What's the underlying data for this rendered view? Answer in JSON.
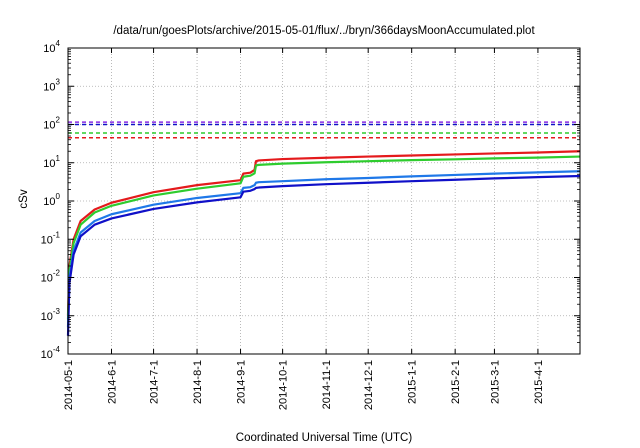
{
  "colors": {
    "red": "#e41a1c",
    "green": "#2ecc2e",
    "light_blue": "#1f78e8",
    "dark_blue": "#1010c8",
    "purple": "#8a2be2",
    "grid": "#aaaaaa"
  },
  "chart_data": {
    "type": "line",
    "title": "/data/run/goesPlots/archive/2015-05-01/flux/../bryn/366daysMoonAccumulated.plot",
    "xlabel": "Coordinated Universal Time (UTC)",
    "ylabel": "cSv",
    "yscale": "log",
    "xlim": [
      "2014-05-01",
      "2015-05-01"
    ],
    "ylim": [
      0.0001,
      10000
    ],
    "grid": true,
    "x_ticks": [
      "2014-05-1",
      "2014-6-1",
      "2014-7-1",
      "2014-8-1",
      "2014-9-1",
      "2014-10-1",
      "2014-11-1",
      "2014-12-1",
      "2015-1-1",
      "2015-2-1",
      "2015-3-1",
      "2015-4-1"
    ],
    "x_tick_dates": [
      "2014-05-01",
      "2014-06-01",
      "2014-07-01",
      "2014-08-01",
      "2014-09-01",
      "2014-10-01",
      "2014-11-01",
      "2014-12-01",
      "2015-01-01",
      "2015-02-01",
      "2015-03-01",
      "2015-04-01"
    ],
    "y_ticks": [
      {
        "value": 0.0001,
        "base": "10",
        "exp": "-4"
      },
      {
        "value": 0.001,
        "base": "10",
        "exp": "-3"
      },
      {
        "value": 0.01,
        "base": "10",
        "exp": "-2"
      },
      {
        "value": 0.1,
        "base": "10",
        "exp": "-1"
      },
      {
        "value": 1,
        "base": "10",
        "exp": "0"
      },
      {
        "value": 10,
        "base": "10",
        "exp": "1"
      },
      {
        "value": 100,
        "base": "10",
        "exp": "2"
      },
      {
        "value": 1000,
        "base": "10",
        "exp": "3"
      },
      {
        "value": 10000,
        "base": "10",
        "exp": "4"
      }
    ],
    "thresholds": [
      {
        "value": 115,
        "color": "#8a2be2",
        "style": "dashed"
      },
      {
        "value": 100,
        "color": "#1010c8",
        "style": "dashed"
      },
      {
        "value": 60,
        "color": "#2ecc2e",
        "style": "dashed"
      },
      {
        "value": 45,
        "color": "#e41a1c",
        "style": "dashed"
      }
    ],
    "series": [
      {
        "color": "#e41a1c",
        "x": [
          "2014-05-01",
          "2014-05-02",
          "2014-05-05",
          "2014-05-10",
          "2014-05-20",
          "2014-06-01",
          "2014-07-01",
          "2014-08-01",
          "2014-09-01",
          "2014-09-03",
          "2014-09-08",
          "2014-09-11",
          "2014-09-12",
          "2014-09-14",
          "2014-10-01",
          "2014-11-01",
          "2014-12-01",
          "2015-01-01",
          "2015-02-01",
          "2015-03-01",
          "2015-04-01",
          "2015-05-01"
        ],
        "values": [
          0.001,
          0.02,
          0.1,
          0.3,
          0.6,
          0.9,
          1.7,
          2.6,
          3.5,
          5.2,
          5.5,
          6.5,
          11.0,
          11.5,
          12.5,
          13.5,
          14.5,
          15.5,
          16.5,
          17.5,
          18.5,
          20.0
        ]
      },
      {
        "color": "#2ecc2e",
        "x": [
          "2014-05-01",
          "2014-05-02",
          "2014-05-05",
          "2014-05-10",
          "2014-05-20",
          "2014-06-01",
          "2014-07-01",
          "2014-08-01",
          "2014-09-01",
          "2014-09-03",
          "2014-09-08",
          "2014-09-11",
          "2014-09-12",
          "2014-09-14",
          "2014-10-01",
          "2014-11-01",
          "2014-12-01",
          "2015-01-01",
          "2015-02-01",
          "2015-03-01",
          "2015-04-01",
          "2015-05-01"
        ],
        "values": [
          0.0008,
          0.015,
          0.08,
          0.24,
          0.5,
          0.75,
          1.4,
          2.1,
          2.9,
          4.3,
          4.6,
          5.3,
          8.5,
          8.8,
          9.5,
          10.3,
          11.0,
          11.7,
          12.3,
          13.0,
          13.6,
          14.5
        ]
      },
      {
        "color": "#1f78e8",
        "x": [
          "2014-05-01",
          "2014-05-02",
          "2014-05-05",
          "2014-05-10",
          "2014-05-20",
          "2014-06-01",
          "2014-07-01",
          "2014-08-01",
          "2014-09-01",
          "2014-09-03",
          "2014-09-08",
          "2014-09-11",
          "2014-09-12",
          "2014-09-14",
          "2014-10-01",
          "2014-11-01",
          "2014-12-01",
          "2015-01-01",
          "2015-02-01",
          "2015-03-01",
          "2015-04-01",
          "2015-05-01"
        ],
        "values": [
          0.0005,
          0.01,
          0.05,
          0.15,
          0.3,
          0.45,
          0.8,
          1.2,
          1.6,
          2.2,
          2.3,
          2.6,
          3.0,
          3.1,
          3.3,
          3.7,
          4.0,
          4.4,
          4.8,
          5.2,
          5.6,
          6.0
        ]
      },
      {
        "color": "#1010c8",
        "x": [
          "2014-05-01",
          "2014-05-02",
          "2014-05-05",
          "2014-05-10",
          "2014-05-20",
          "2014-06-01",
          "2014-07-01",
          "2014-08-01",
          "2014-09-01",
          "2014-09-03",
          "2014-09-08",
          "2014-09-11",
          "2014-09-12",
          "2014-09-14",
          "2014-10-01",
          "2014-11-01",
          "2014-12-01",
          "2015-01-01",
          "2015-02-01",
          "2015-03-01",
          "2015-04-01",
          "2015-05-01"
        ],
        "values": [
          0.0003,
          0.007,
          0.04,
          0.12,
          0.24,
          0.35,
          0.62,
          0.92,
          1.25,
          1.75,
          1.85,
          2.05,
          2.2,
          2.25,
          2.45,
          2.75,
          3.0,
          3.3,
          3.6,
          3.9,
          4.2,
          4.5
        ]
      }
    ]
  }
}
